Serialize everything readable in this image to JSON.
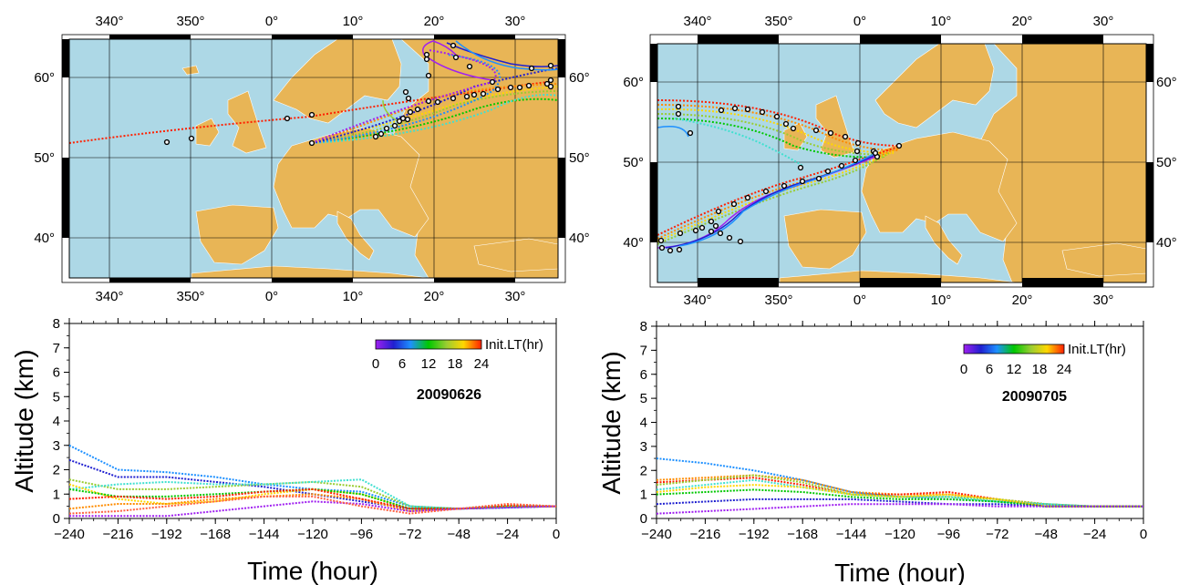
{
  "maps": [
    {
      "id": "left",
      "lon_ticks": [
        "340°",
        "350°",
        "0°",
        "10°",
        "20°",
        "30°"
      ],
      "lat_ticks": [
        "60°",
        "50°",
        "40°"
      ]
    },
    {
      "id": "right",
      "lon_ticks": [
        "340°",
        "350°",
        "0°",
        "10°",
        "20°",
        "30°"
      ],
      "lat_ticks": [
        "60°",
        "50°",
        "40°"
      ]
    }
  ],
  "chart_data": [
    {
      "type": "line",
      "date_label": "20090626",
      "xlabel": "Time (hour)",
      "ylabel": "Altitude (km)",
      "xlim": [
        -240,
        0
      ],
      "ylim": [
        0,
        8
      ],
      "x_ticks": [
        -240,
        -216,
        -192,
        -168,
        -144,
        -120,
        -96,
        -72,
        -48,
        -24,
        0
      ],
      "y_ticks": [
        0,
        1,
        2,
        3,
        4,
        5,
        6,
        7,
        8
      ],
      "colorbar": {
        "title": "Init.LT(hr)",
        "ticks": [
          "0",
          "6",
          "12",
          "18",
          "24"
        ]
      },
      "x": [
        -240,
        -216,
        -192,
        -168,
        -144,
        -120,
        -96,
        -72,
        -48,
        -24,
        0
      ],
      "series": [
        {
          "color": "#1e90ff",
          "values": [
            3.0,
            2.0,
            1.9,
            1.7,
            1.4,
            1.2,
            1.1,
            0.5,
            0.4,
            0.45,
            0.5
          ]
        },
        {
          "color": "#2020d0",
          "values": [
            2.4,
            1.7,
            1.7,
            1.5,
            1.3,
            1.0,
            0.7,
            0.4,
            0.4,
            0.45,
            0.5
          ]
        },
        {
          "color": "#9acd32",
          "values": [
            1.6,
            1.2,
            1.2,
            1.3,
            1.4,
            1.5,
            1.3,
            0.5,
            0.4,
            0.5,
            0.5
          ]
        },
        {
          "color": "#40e0d0",
          "values": [
            1.2,
            1.4,
            1.5,
            1.4,
            1.4,
            1.5,
            1.6,
            0.5,
            0.4,
            0.5,
            0.5
          ]
        },
        {
          "color": "#ffd700",
          "values": [
            1.4,
            0.8,
            0.6,
            0.7,
            1.0,
            1.2,
            1.0,
            0.4,
            0.4,
            0.5,
            0.5
          ]
        },
        {
          "color": "#00c800",
          "values": [
            1.2,
            0.9,
            0.9,
            1.0,
            1.1,
            1.2,
            1.0,
            0.4,
            0.4,
            0.5,
            0.5
          ]
        },
        {
          "color": "#ff8c00",
          "values": [
            0.4,
            0.6,
            0.6,
            0.8,
            0.9,
            1.0,
            0.8,
            0.3,
            0.4,
            0.5,
            0.5
          ]
        },
        {
          "color": "#ff2000",
          "values": [
            0.8,
            0.9,
            0.8,
            0.9,
            1.1,
            1.2,
            0.8,
            0.4,
            0.4,
            0.55,
            0.5
          ]
        },
        {
          "color": "#a020f0",
          "values": [
            0.1,
            0.1,
            0.1,
            0.3,
            0.5,
            0.7,
            0.6,
            0.3,
            0.4,
            0.45,
            0.5
          ]
        },
        {
          "color": "#ff6040",
          "values": [
            0.2,
            0.3,
            0.5,
            0.7,
            0.9,
            0.9,
            0.5,
            0.2,
            0.4,
            0.6,
            0.5
          ]
        }
      ]
    },
    {
      "type": "line",
      "date_label": "20090705",
      "xlabel": "Time (hour)",
      "ylabel": "Altitude (km)",
      "xlim": [
        -240,
        0
      ],
      "ylim": [
        0,
        8
      ],
      "x_ticks": [
        -240,
        -216,
        -192,
        -168,
        -144,
        -120,
        -96,
        -72,
        -48,
        -24,
        0
      ],
      "y_ticks": [
        0,
        1,
        2,
        3,
        4,
        5,
        6,
        7,
        8
      ],
      "colorbar": {
        "title": "Init.LT(hr)",
        "ticks": [
          "0",
          "6",
          "12",
          "18",
          "24"
        ]
      },
      "x": [
        -240,
        -216,
        -192,
        -168,
        -144,
        -120,
        -96,
        -72,
        -48,
        -24,
        0
      ],
      "series": [
        {
          "color": "#1e90ff",
          "values": [
            2.5,
            2.3,
            2.0,
            1.6,
            1.1,
            0.9,
            0.8,
            0.7,
            0.6,
            0.5,
            0.5
          ]
        },
        {
          "color": "#ff8c00",
          "values": [
            1.6,
            1.7,
            1.8,
            1.6,
            1.1,
            1.0,
            1.0,
            0.8,
            0.6,
            0.5,
            0.5
          ]
        },
        {
          "color": "#ff2000",
          "values": [
            1.5,
            1.6,
            1.7,
            1.4,
            1.0,
            1.0,
            1.1,
            0.8,
            0.5,
            0.5,
            0.5
          ]
        },
        {
          "color": "#9acd32",
          "values": [
            1.4,
            1.6,
            1.8,
            1.5,
            1.0,
            0.9,
            0.9,
            0.8,
            0.6,
            0.5,
            0.5
          ]
        },
        {
          "color": "#40e0d0",
          "values": [
            1.2,
            1.4,
            1.6,
            1.3,
            1.0,
            0.9,
            0.9,
            0.7,
            0.6,
            0.5,
            0.5
          ]
        },
        {
          "color": "#ffd700",
          "values": [
            1.1,
            1.3,
            1.4,
            1.3,
            1.0,
            0.9,
            1.0,
            0.8,
            0.5,
            0.5,
            0.5
          ]
        },
        {
          "color": "#00c800",
          "values": [
            1.0,
            1.1,
            1.2,
            1.1,
            0.9,
            0.8,
            0.8,
            0.7,
            0.5,
            0.5,
            0.5
          ]
        },
        {
          "color": "#2020d0",
          "values": [
            0.6,
            0.7,
            0.8,
            0.8,
            0.8,
            0.7,
            0.6,
            0.6,
            0.5,
            0.5,
            0.5
          ]
        },
        {
          "color": "#a020f0",
          "values": [
            0.2,
            0.3,
            0.4,
            0.5,
            0.6,
            0.6,
            0.6,
            0.5,
            0.5,
            0.5,
            0.5
          ]
        }
      ]
    }
  ]
}
